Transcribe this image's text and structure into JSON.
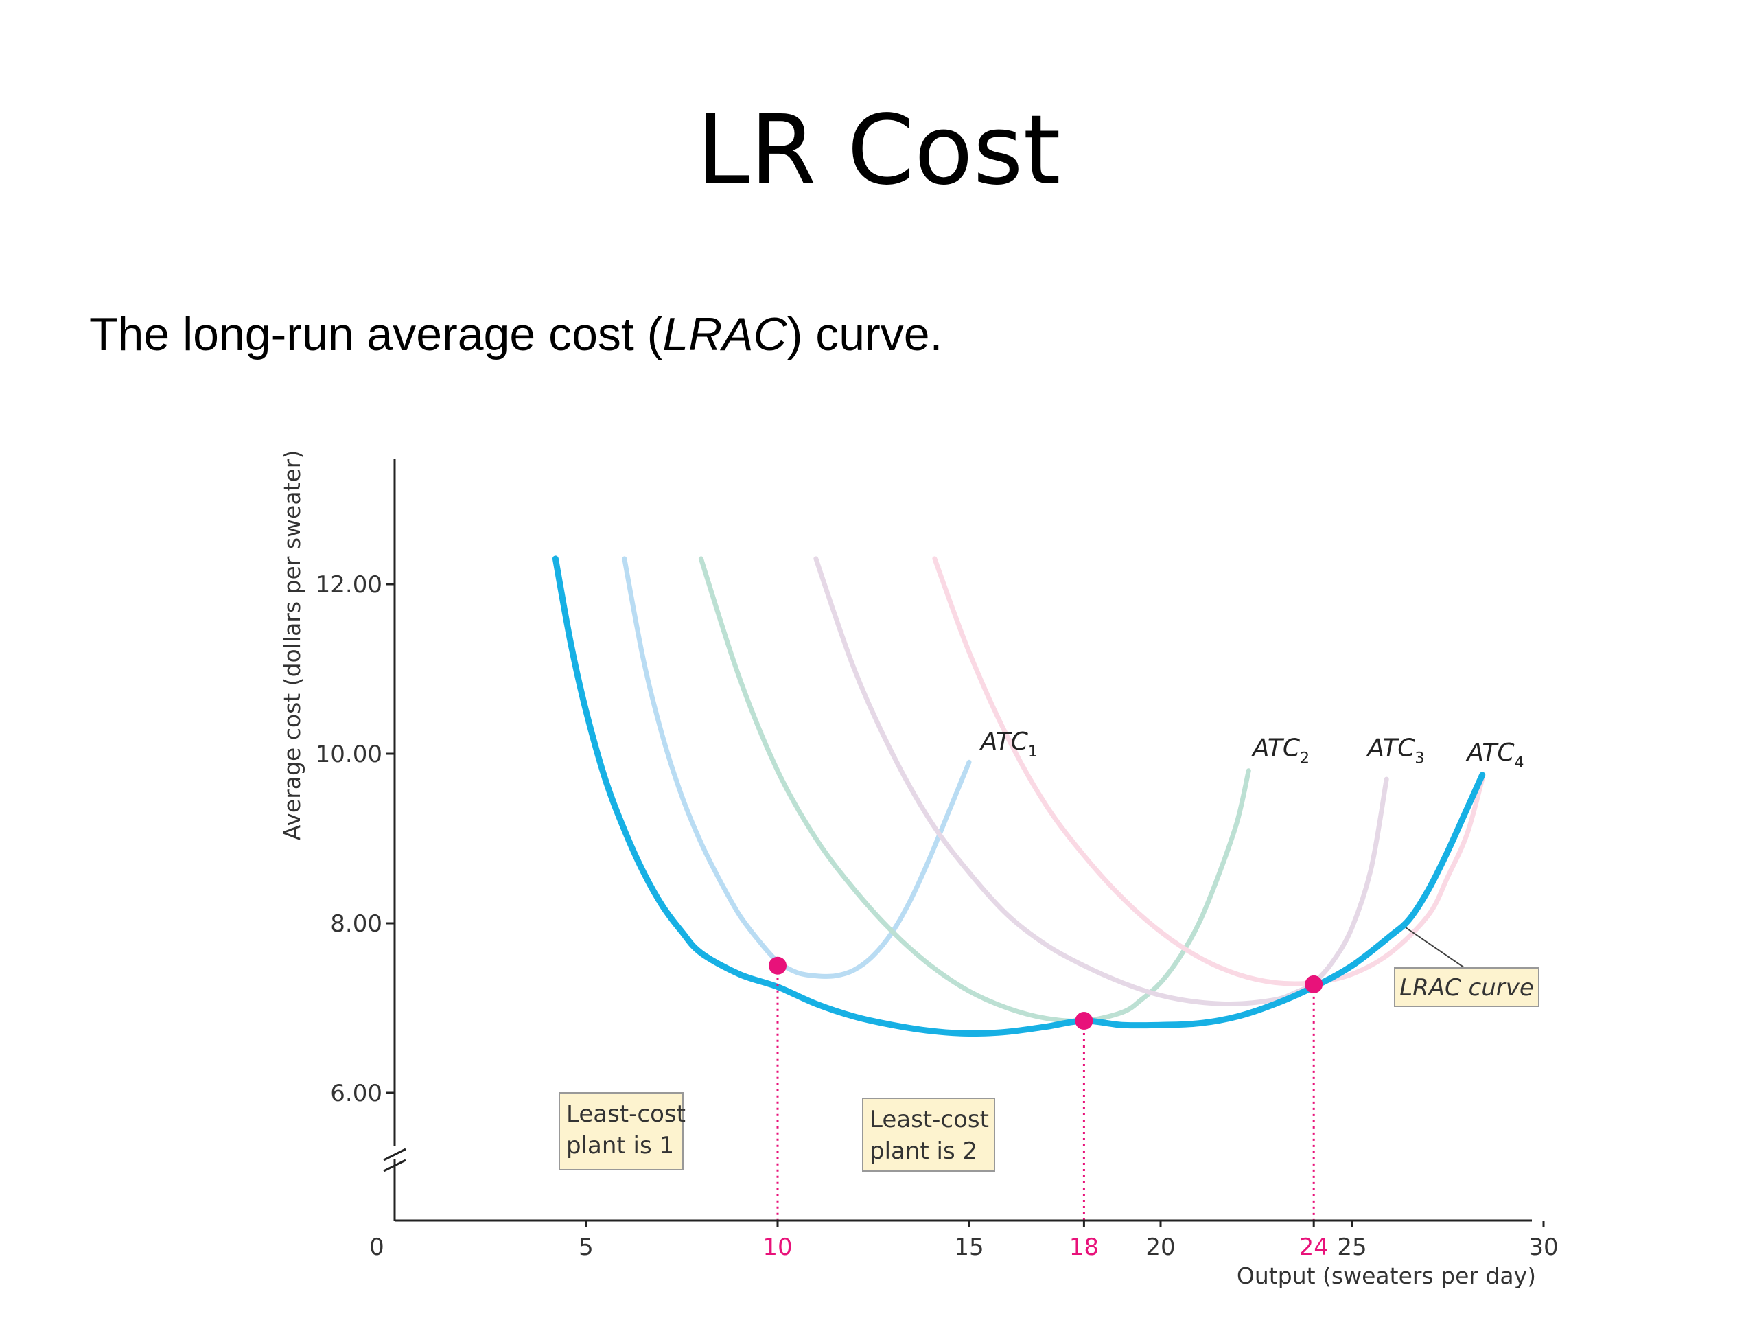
{
  "slide": {
    "title": "LR Cost",
    "subtitle_pre": "The long-run average cost (",
    "subtitle_em": "LRAC",
    "subtitle_post": ") curve."
  },
  "chart_data": {
    "type": "line",
    "xlabel": "Output (sweaters per day)",
    "ylabel": "Average cost (dollars per sweater)",
    "xlim": [
      0,
      30
    ],
    "ylim": [
      5,
      13.5
    ],
    "x_ticks": [
      {
        "value": 0,
        "label": "0",
        "highlight": false
      },
      {
        "value": 5,
        "label": "5",
        "highlight": false
      },
      {
        "value": 10,
        "label": "10",
        "highlight": true
      },
      {
        "value": 15,
        "label": "15",
        "highlight": false
      },
      {
        "value": 18,
        "label": "18",
        "highlight": true
      },
      {
        "value": 20,
        "label": "20",
        "highlight": false
      },
      {
        "value": 24,
        "label": "24",
        "highlight": true
      },
      {
        "value": 25,
        "label": "25",
        "highlight": false
      },
      {
        "value": 30,
        "label": "30",
        "highlight": false
      }
    ],
    "y_ticks": [
      {
        "value": 6,
        "label": "6.00"
      },
      {
        "value": 8,
        "label": "8.00"
      },
      {
        "value": 10,
        "label": "10.00"
      },
      {
        "value": 12,
        "label": "12.00"
      }
    ],
    "axis_break": true,
    "series": [
      {
        "name": "ATC1",
        "label_main": "ATC",
        "label_sub": "1",
        "color": "#b9dcf3",
        "points": [
          [
            6.0,
            12.3
          ],
          [
            6.5,
            11.1
          ],
          [
            7.0,
            10.2
          ],
          [
            7.5,
            9.5
          ],
          [
            8.0,
            8.95
          ],
          [
            8.5,
            8.5
          ],
          [
            9.0,
            8.1
          ],
          [
            9.5,
            7.8
          ],
          [
            10.0,
            7.55
          ],
          [
            10.5,
            7.42
          ],
          [
            11.0,
            7.38
          ],
          [
            11.5,
            7.38
          ],
          [
            12.0,
            7.45
          ],
          [
            12.5,
            7.62
          ],
          [
            13.0,
            7.9
          ],
          [
            13.5,
            8.3
          ],
          [
            14.0,
            8.8
          ],
          [
            14.5,
            9.35
          ],
          [
            15.0,
            9.9
          ]
        ]
      },
      {
        "name": "ATC2",
        "label_main": "ATC",
        "label_sub": "2",
        "color": "#bce0d3",
        "points": [
          [
            8.0,
            12.3
          ],
          [
            9.0,
            10.9
          ],
          [
            10.0,
            9.8
          ],
          [
            11.0,
            9.0
          ],
          [
            12.0,
            8.4
          ],
          [
            13.0,
            7.9
          ],
          [
            14.0,
            7.5
          ],
          [
            15.0,
            7.2
          ],
          [
            16.0,
            7.0
          ],
          [
            17.0,
            6.88
          ],
          [
            18.0,
            6.85
          ],
          [
            19.0,
            6.95
          ],
          [
            19.5,
            7.1
          ],
          [
            20.0,
            7.3
          ],
          [
            20.5,
            7.6
          ],
          [
            21.0,
            8.0
          ],
          [
            21.5,
            8.55
          ],
          [
            22.0,
            9.2
          ],
          [
            22.3,
            9.8
          ]
        ]
      },
      {
        "name": "ATC3",
        "label_main": "ATC",
        "label_sub": "3",
        "color": "#e5d8e6",
        "points": [
          [
            11.0,
            12.3
          ],
          [
            12.0,
            11.0
          ],
          [
            13.0,
            10.0
          ],
          [
            14.0,
            9.2
          ],
          [
            15.0,
            8.6
          ],
          [
            16.0,
            8.1
          ],
          [
            17.0,
            7.75
          ],
          [
            18.0,
            7.5
          ],
          [
            19.0,
            7.3
          ],
          [
            20.0,
            7.15
          ],
          [
            21.0,
            7.07
          ],
          [
            22.0,
            7.05
          ],
          [
            23.0,
            7.1
          ],
          [
            23.5,
            7.18
          ],
          [
            24.0,
            7.3
          ],
          [
            24.5,
            7.55
          ],
          [
            25.0,
            7.95
          ],
          [
            25.5,
            8.65
          ],
          [
            25.9,
            9.7
          ]
        ]
      },
      {
        "name": "ATC4",
        "label_main": "ATC",
        "label_sub": "4",
        "color": "#fad9e4",
        "points": [
          [
            14.1,
            12.3
          ],
          [
            15.0,
            11.2
          ],
          [
            16.0,
            10.2
          ],
          [
            17.0,
            9.4
          ],
          [
            18.0,
            8.8
          ],
          [
            19.0,
            8.3
          ],
          [
            20.0,
            7.9
          ],
          [
            21.0,
            7.6
          ],
          [
            22.0,
            7.4
          ],
          [
            23.0,
            7.3
          ],
          [
            24.0,
            7.3
          ],
          [
            25.0,
            7.4
          ],
          [
            26.0,
            7.65
          ],
          [
            27.0,
            8.1
          ],
          [
            27.5,
            8.55
          ],
          [
            28.0,
            9.05
          ],
          [
            28.4,
            9.7
          ]
        ]
      },
      {
        "name": "LRAC",
        "label_main": "LRAC curve",
        "label_sub": "",
        "color": "#17b0e4",
        "points": [
          [
            4.2,
            12.3
          ],
          [
            4.6,
            11.3
          ],
          [
            5.0,
            10.5
          ],
          [
            5.5,
            9.7
          ],
          [
            6.0,
            9.1
          ],
          [
            6.5,
            8.6
          ],
          [
            7.0,
            8.2
          ],
          [
            7.5,
            7.9
          ],
          [
            8.0,
            7.65
          ],
          [
            9.0,
            7.4
          ],
          [
            10.0,
            7.25
          ],
          [
            11.0,
            7.05
          ],
          [
            12.0,
            6.9
          ],
          [
            13.0,
            6.8
          ],
          [
            14.0,
            6.73
          ],
          [
            15.0,
            6.7
          ],
          [
            16.0,
            6.72
          ],
          [
            17.0,
            6.78
          ],
          [
            18.0,
            6.85
          ],
          [
            19.0,
            6.8
          ],
          [
            20.0,
            6.8
          ],
          [
            21.0,
            6.82
          ],
          [
            22.0,
            6.9
          ],
          [
            23.0,
            7.05
          ],
          [
            24.0,
            7.25
          ],
          [
            25.0,
            7.5
          ],
          [
            26.0,
            7.85
          ],
          [
            26.5,
            8.05
          ],
          [
            27.0,
            8.4
          ],
          [
            27.5,
            8.85
          ],
          [
            28.0,
            9.35
          ],
          [
            28.4,
            9.75
          ]
        ]
      }
    ],
    "minimum_points": [
      [
        10,
        7.5
      ],
      [
        18,
        6.85
      ],
      [
        24,
        7.28
      ]
    ],
    "annotations": [
      {
        "line1": "Least-cost",
        "line2": "plant is 1"
      },
      {
        "line1": "Least-cost",
        "line2": "plant is 2"
      }
    ],
    "colors": {
      "axis": "#222222",
      "highlight": "#e8127a",
      "box_fill": "#fdf3cf",
      "box_stroke": "#999999"
    }
  }
}
